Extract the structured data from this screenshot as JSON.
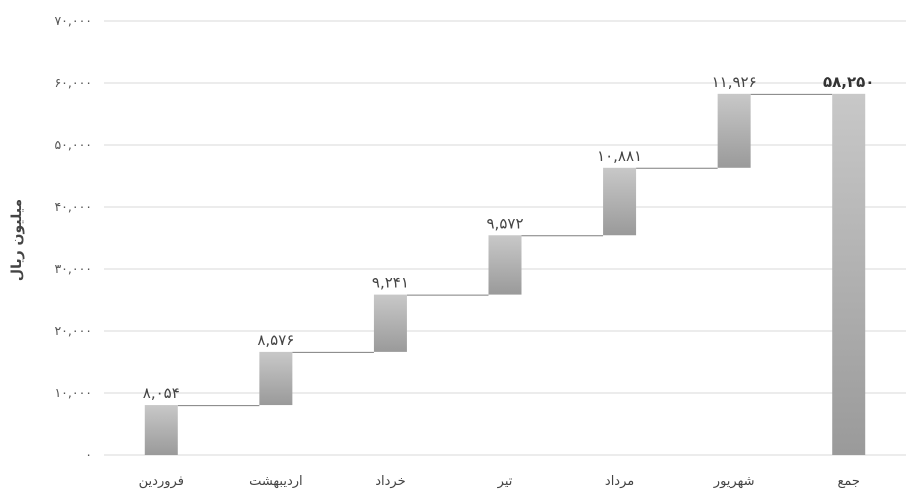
{
  "chart_data": {
    "type": "bar",
    "subtype": "waterfall",
    "ylabel": "میلیون ریال",
    "ylim": [
      0,
      70000
    ],
    "yticks": [
      0,
      10000,
      20000,
      30000,
      40000,
      50000,
      60000,
      70000
    ],
    "ytick_labels": [
      "۰",
      "۱۰,۰۰۰",
      "۲۰,۰۰۰",
      "۳۰,۰۰۰",
      "۴۰,۰۰۰",
      "۵۰,۰۰۰",
      "۶۰,۰۰۰",
      "۷۰,۰۰۰"
    ],
    "grid": true,
    "categories": [
      "فروردین",
      "اردیبهشت",
      "خرداد",
      "تیر",
      "مرداد",
      "شهریور",
      "جمع"
    ],
    "values": [
      8054,
      8576,
      9241,
      9572,
      10881,
      11926,
      58250
    ],
    "is_total": [
      false,
      false,
      false,
      false,
      false,
      false,
      true
    ],
    "data_labels": [
      "۸,۰۵۴",
      "۸,۵۷۶",
      "۹,۲۴۱",
      "۹,۵۷۲",
      "۱۰,۸۸۱",
      "۱۱,۹۲۶",
      "۵۸,۲۵۰"
    ],
    "colors": {
      "bar_top": "#c8c8c8",
      "bar_bottom": "#9a9a9a",
      "grid": "#d9d9d9",
      "connector": "#7f7f7f"
    }
  }
}
